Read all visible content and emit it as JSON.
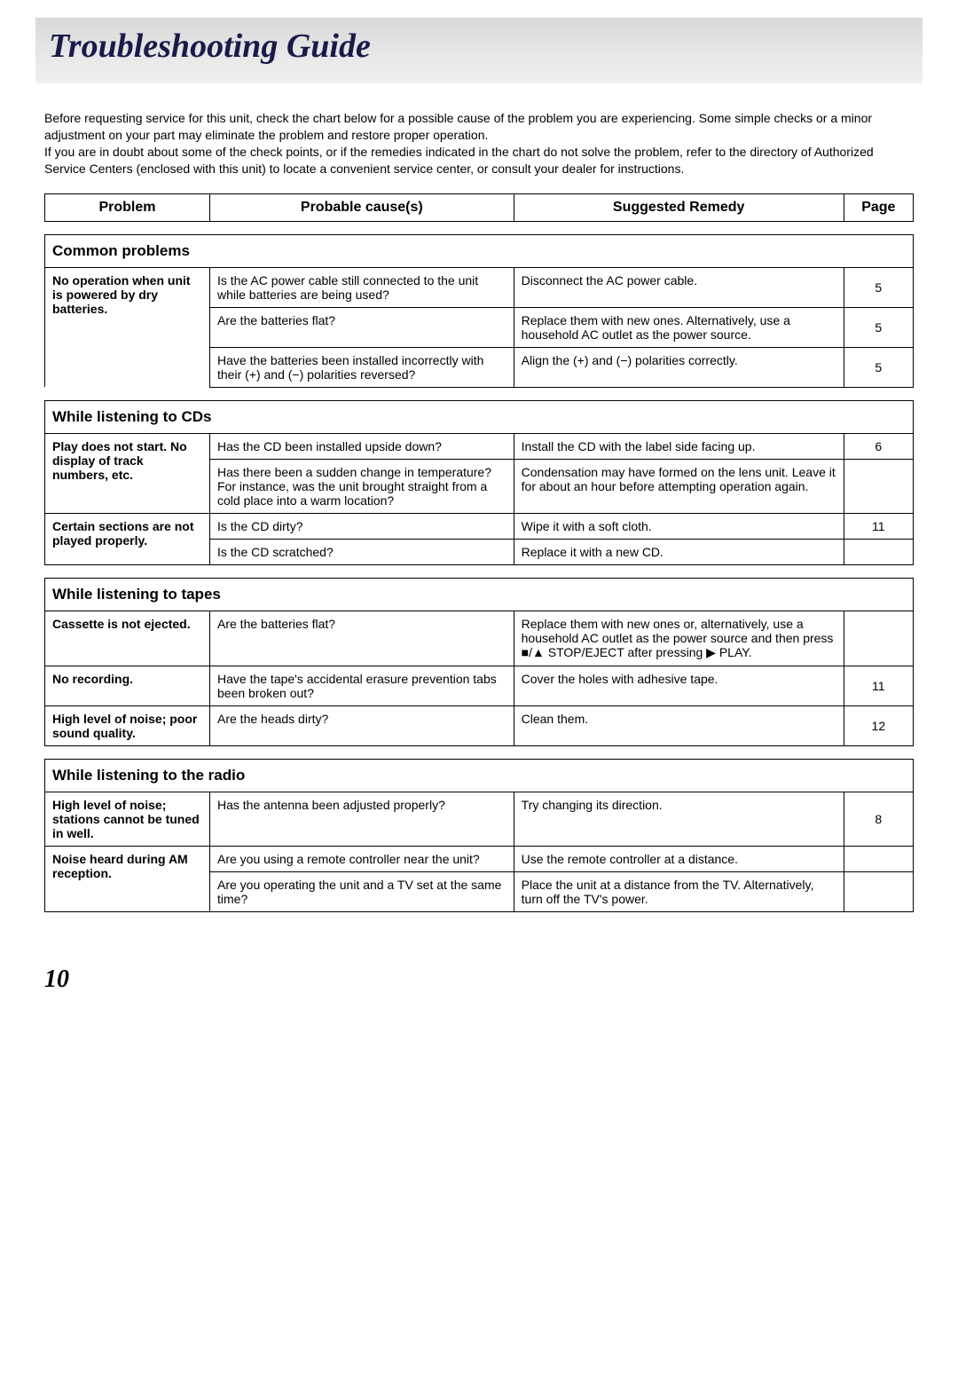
{
  "title": "Troubleshooting Guide",
  "intro_p1": "Before requesting service for this unit, check the chart below for a possible cause of the problem you are experiencing. Some simple checks or a minor adjustment on your part may eliminate the problem and restore proper operation.",
  "intro_p2": "If you are in doubt about some of the check points, or if the remedies indicated in the chart do not solve the problem, refer to the directory of Authorized Service Centers (enclosed with this unit) to locate a convenient service center, or consult your dealer for instructions.",
  "header": {
    "problem": "Problem",
    "cause": "Probable cause(s)",
    "remedy": "Suggested Remedy",
    "page": "Page"
  },
  "sections": {
    "common": {
      "title": "Common problems",
      "r1_problem": "No operation when unit is powered by dry batteries.",
      "r1_cause": "Is the AC power cable still connected to the unit while batteries are being used?",
      "r1_remedy": "Disconnect the AC power cable.",
      "r1_page": "5",
      "r2_cause": "Are the batteries flat?",
      "r2_remedy": "Replace them with new ones. Alternatively, use a household AC outlet as the power source.",
      "r2_page": "5",
      "r3_cause": "Have the batteries been installed incorrectly with their (+) and (−) polarities reversed?",
      "r3_remedy": "Align the (+) and (−) polarities correctly.",
      "r3_page": "5"
    },
    "cds": {
      "title": "While listening to CDs",
      "r1_problem": "Play does not start. No display of track numbers, etc.",
      "r1_cause": "Has the CD been installed upside down?",
      "r1_remedy": "Install the CD with the label side facing up.",
      "r1_page": "6",
      "r2_cause": "Has there been a sudden change in temperature? For instance, was the unit brought straight from a cold place into a warm location?",
      "r2_remedy": "Condensation may have formed on the lens unit. Leave it for about an hour before attempting operation again.",
      "r2_page": "",
      "r3_problem": "Certain sections are not played properly.",
      "r3_cause": "Is the CD dirty?",
      "r3_remedy": "Wipe it with a soft cloth.",
      "r3_page": "11",
      "r4_cause": "Is the CD scratched?",
      "r4_remedy": "Replace it with a new CD.",
      "r4_page": ""
    },
    "tapes": {
      "title": "While listening to tapes",
      "r1_problem": "Cassette is not ejected.",
      "r1_cause": "Are the batteries flat?",
      "r1_remedy": "Replace them with new ones or, alternatively, use a household AC outlet as the power source and then press ■/▲ STOP/EJECT after pressing ▶ PLAY.",
      "r1_page": "",
      "r2_problem": "No recording.",
      "r2_cause": "Have the tape's accidental erasure prevention tabs been broken out?",
      "r2_remedy": "Cover the holes with adhesive tape.",
      "r2_page": "11",
      "r3_problem": "High level of noise;  poor sound quality.",
      "r3_cause": "Are the heads dirty?",
      "r3_remedy": "Clean them.",
      "r3_page": "12"
    },
    "radio": {
      "title": "While listening to the radio",
      "r1_problem": "High level of noise;  stations cannot be tuned in well.",
      "r1_cause": "Has the antenna been adjusted properly?",
      "r1_remedy": "Try changing its direction.",
      "r1_page": "8",
      "r2_problem": "Noise heard during AM reception.",
      "r2_cause": "Are you using a remote controller near the unit?",
      "r2_remedy": "Use the remote controller at a distance.",
      "r2_page": "",
      "r3_cause": "Are you operating the unit and a TV set at the same time?",
      "r3_remedy": "Place the unit at a distance from the TV. Alternatively, turn off the TV's power.",
      "r3_page": ""
    }
  },
  "page_number": "10"
}
